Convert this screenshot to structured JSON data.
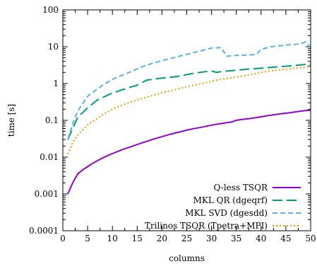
{
  "chart_data": {
    "type": "line",
    "xlabel": "columns",
    "ylabel": "time [s]",
    "xlim": [
      0,
      50
    ],
    "ylim": [
      0.0001,
      100
    ],
    "yscale": "log",
    "grid": false,
    "legend_position": "bottom-right",
    "xticks": [
      0,
      5,
      10,
      15,
      20,
      25,
      30,
      35,
      40,
      45,
      50
    ],
    "xtick_labels": [
      "0",
      "5",
      "10",
      "15",
      "20",
      "25",
      "30",
      "35",
      "40",
      "45",
      "50"
    ],
    "yticks": [
      0.0001,
      0.001,
      0.01,
      0.1,
      1,
      10,
      100
    ],
    "ytick_labels": [
      "0.0001",
      "0.001",
      "0.01",
      "0.1",
      "1",
      "10",
      "100"
    ],
    "series": [
      {
        "name": "Q-less TSQR",
        "color": "#9400d3",
        "dash": "solid",
        "x": [
          1,
          2,
          3,
          4,
          5,
          6,
          8,
          10,
          12,
          15,
          18,
          20,
          22,
          24,
          25,
          26,
          28,
          30,
          32,
          34,
          35,
          36,
          38,
          40,
          42,
          44,
          46,
          48,
          50
        ],
        "y": [
          0.001,
          0.002,
          0.0035,
          0.0045,
          0.0055,
          0.0068,
          0.0095,
          0.0125,
          0.016,
          0.022,
          0.03,
          0.036,
          0.043,
          0.05,
          0.054,
          0.058,
          0.065,
          0.074,
          0.082,
          0.09,
          0.1,
          0.105,
          0.113,
          0.125,
          0.138,
          0.15,
          0.162,
          0.178,
          0.19
        ]
      },
      {
        "name": "MKL QR (dgeqrf)",
        "color": "#009e73",
        "dash": "long-dash",
        "x": [
          1,
          2,
          3,
          5,
          7,
          10,
          13,
          15,
          17,
          20,
          23,
          25,
          27,
          30,
          31,
          32,
          35,
          38,
          40,
          42,
          45,
          48,
          50
        ],
        "y": [
          0.03,
          0.06,
          0.12,
          0.22,
          0.36,
          0.55,
          0.75,
          0.9,
          1.25,
          1.4,
          1.55,
          1.75,
          1.95,
          2.2,
          2.0,
          2.1,
          2.3,
          2.5,
          2.6,
          2.75,
          2.95,
          3.2,
          3.4
        ]
      },
      {
        "name": "MKL SVD (dgesdd)",
        "color": "#56b4e9",
        "dash": "dash",
        "x": [
          1,
          2,
          3,
          5,
          8,
          10,
          13,
          15,
          17,
          20,
          23,
          25,
          28,
          30,
          32,
          33,
          35,
          38,
          39,
          40,
          42,
          45,
          48,
          49,
          50
        ],
        "y": [
          0.03,
          0.08,
          0.18,
          0.45,
          0.9,
          1.3,
          1.9,
          2.5,
          3.2,
          4.2,
          5.3,
          6.2,
          7.8,
          9.2,
          9.5,
          5.5,
          5.8,
          6.0,
          6.2,
          8.5,
          10.0,
          11.0,
          12.0,
          13.5,
          9.5
        ]
      },
      {
        "name": "Trilinos TSQR (Tpetra+MPI)",
        "color": "#e69f00",
        "dash": "dot",
        "x": [
          1,
          2,
          3,
          5,
          8,
          10,
          12,
          15,
          18,
          20,
          22,
          25,
          28,
          30,
          32,
          35,
          38,
          40,
          42,
          45,
          48,
          50
        ],
        "y": [
          0.012,
          0.025,
          0.04,
          0.075,
          0.14,
          0.2,
          0.26,
          0.36,
          0.47,
          0.56,
          0.65,
          0.82,
          1.0,
          1.15,
          1.3,
          1.5,
          1.75,
          2.0,
          2.2,
          2.45,
          2.7,
          2.9
        ]
      }
    ]
  }
}
